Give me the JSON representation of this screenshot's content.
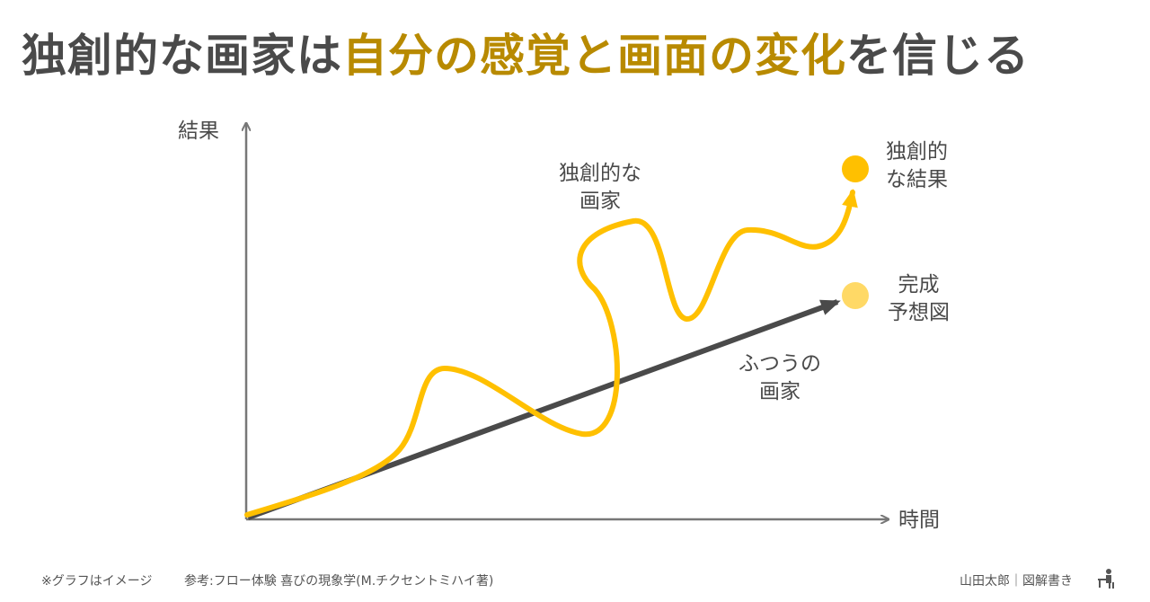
{
  "title": {
    "part1": "独創的な画家は",
    "highlight": "自分の感覚と画面の変化",
    "part2": "を信じる"
  },
  "axes": {
    "y_label": "結果",
    "x_label": "時間"
  },
  "labels": {
    "creative_painter": [
      "独創的な",
      "画家"
    ],
    "creative_result": [
      "独創的",
      "な結果"
    ],
    "expected": [
      "完成",
      "予想図"
    ],
    "ordinary_painter": [
      "ふつうの",
      "画家"
    ]
  },
  "footer": {
    "note": "※グラフはイメージ",
    "reference": "参考:フロー体験  喜びの現象学(M.チクセントミハイ著)",
    "author": "山田太郎｜図解書き"
  },
  "colors": {
    "dark": "#4a4a4a",
    "gold": "#b88a00",
    "curve": "#ffc000",
    "pale": "#ffd966"
  }
}
